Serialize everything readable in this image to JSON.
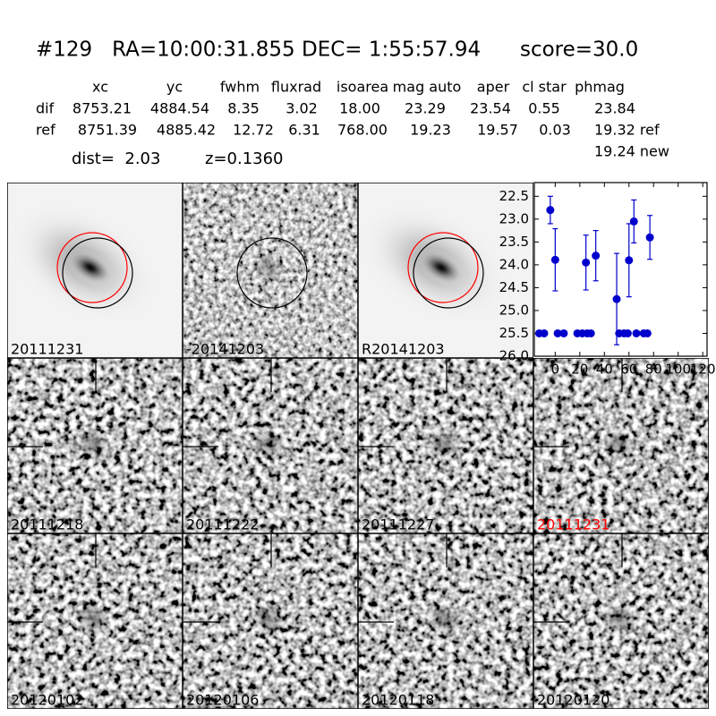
{
  "header": {
    "title": "#129   RA=10:00:31.855 DEC= 1:55:57.94      score=30.0"
  },
  "table": {
    "columns": [
      "xc",
      "yc",
      "fwhm",
      "fluxrad",
      "isoarea",
      "mag auto",
      "aper",
      "cl star",
      "phmag"
    ],
    "rows": [
      [
        "dif",
        "8753.21",
        "4884.54",
        "8.35",
        "3.02",
        "18.00",
        "23.29",
        "23.54",
        "0.55",
        "23.84"
      ],
      [
        "ref",
        "8751.39",
        "4885.42",
        "12.72",
        "6.31",
        "768.00",
        "19.23",
        "19.57",
        "0.03",
        "19.32 ref"
      ]
    ],
    "extra": "19.24 new"
  },
  "dist": "dist=  2.03",
  "z": "z=0.1360",
  "stamps": [
    {
      "label": "20111231",
      "color": "#000000"
    },
    {
      "label": "-20141203",
      "color": "#000000"
    },
    {
      "label": "R20141203",
      "color": "#000000"
    },
    {
      "label": "20111218",
      "color": "#000000"
    },
    {
      "label": "20111222",
      "color": "#000000"
    },
    {
      "label": "20111227",
      "color": "#000000"
    },
    {
      "label": "20111231",
      "color": "#ff0000"
    },
    {
      "label": "20120102",
      "color": "#000000"
    },
    {
      "label": "20120106",
      "color": "#000000"
    },
    {
      "label": "20120118",
      "color": "#000000"
    },
    {
      "label": "20120120",
      "color": "#000000"
    }
  ],
  "chart_data": {
    "type": "scatter",
    "xlim": [
      -17,
      123.5
    ],
    "xticks": [
      0,
      20,
      40,
      60,
      80,
      100,
      120
    ],
    "ylim": [
      22.2,
      26.0
    ],
    "y_inverted": true,
    "yticks": [
      22.5,
      {
        "value": 23,
        "label": "23.0"
      },
      23.5,
      {
        "value": 24,
        "label": "24.0"
      },
      24.5,
      {
        "value": 25,
        "label": "25.0"
      },
      25.5,
      {
        "value": 26,
        "label": "26.0"
      }
    ],
    "series": [
      {
        "color": "#0000cc",
        "x": [
          -4,
          0,
          25,
          33,
          50,
          60,
          64,
          77
        ],
        "values": [
          22.8,
          23.89,
          23.95,
          23.8,
          24.75,
          23.9,
          23.05,
          23.4
        ],
        "errors": [
          0.3,
          0.68,
          0.6,
          0.55,
          1.0,
          0.8,
          0.47,
          0.48
        ]
      },
      {
        "color": "#0000cc",
        "x": [
          -13,
          -9,
          2,
          7,
          18,
          22,
          26,
          29,
          52,
          56,
          59,
          66,
          72,
          75
        ],
        "values": [
          25.5,
          25.5,
          25.5,
          25.5,
          25.5,
          25.5,
          25.5,
          25.5,
          25.5,
          25.5,
          25.5,
          25.5,
          25.5,
          25.5
        ]
      }
    ]
  }
}
